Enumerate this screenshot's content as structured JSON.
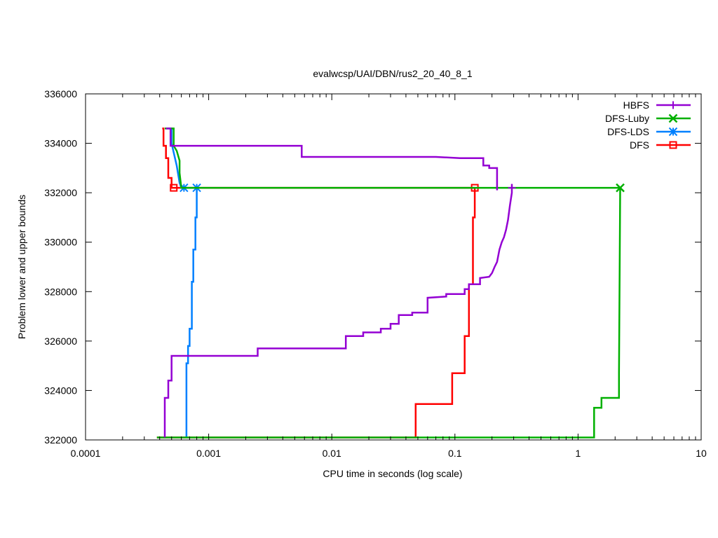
{
  "chart_data": {
    "type": "line",
    "title": "evalwcsp/UAI/DBN/rus2_20_40_8_1",
    "xlabel": "CPU time in seconds (log scale)",
    "ylabel": "Problem lower and upper bounds",
    "xscale": "log",
    "xlim": [
      0.0001,
      10
    ],
    "ylim": [
      322000,
      336000
    ],
    "xticks": [
      0.0001,
      0.001,
      0.01,
      0.1,
      1,
      10
    ],
    "xtick_labels": [
      "0.0001",
      "0.001",
      "0.01",
      "0.1",
      "1",
      "10"
    ],
    "yticks": [
      322000,
      324000,
      326000,
      328000,
      330000,
      332000,
      334000,
      336000
    ],
    "ytick_labels": [
      "322000",
      "324000",
      "326000",
      "328000",
      "330000",
      "332000",
      "334000",
      "336000"
    ],
    "grid": false,
    "legend_position": "top-right",
    "series": [
      {
        "name": "HBFS",
        "color": "#9400d3",
        "marker": "plus",
        "upper": [
          [
            0.00045,
            334600
          ],
          [
            0.00049,
            334600
          ],
          [
            0.00049,
            333900
          ],
          [
            0.0057,
            333900
          ],
          [
            0.0057,
            333450
          ],
          [
            0.07,
            333450
          ],
          [
            0.11,
            333400
          ],
          [
            0.17,
            333400
          ],
          [
            0.17,
            333100
          ],
          [
            0.19,
            333100
          ],
          [
            0.19,
            333000
          ],
          [
            0.22,
            333000
          ],
          [
            0.22,
            332100
          ]
        ],
        "lower": [
          [
            0.00044,
            322100
          ],
          [
            0.00044,
            323700
          ],
          [
            0.00047,
            323700
          ],
          [
            0.00047,
            324400
          ],
          [
            0.0005,
            324400
          ],
          [
            0.0005,
            325400
          ],
          [
            0.0025,
            325400
          ],
          [
            0.0025,
            325700
          ],
          [
            0.013,
            325700
          ],
          [
            0.013,
            326200
          ],
          [
            0.018,
            326200
          ],
          [
            0.018,
            326350
          ],
          [
            0.025,
            326350
          ],
          [
            0.025,
            326500
          ],
          [
            0.03,
            326500
          ],
          [
            0.03,
            326700
          ],
          [
            0.035,
            326700
          ],
          [
            0.035,
            327050
          ],
          [
            0.045,
            327050
          ],
          [
            0.045,
            327150
          ],
          [
            0.06,
            327150
          ],
          [
            0.06,
            327750
          ],
          [
            0.085,
            327800
          ],
          [
            0.085,
            327900
          ],
          [
            0.12,
            327900
          ],
          [
            0.12,
            328100
          ],
          [
            0.13,
            328100
          ],
          [
            0.13,
            328300
          ],
          [
            0.16,
            328300
          ],
          [
            0.16,
            328550
          ],
          [
            0.19,
            328600
          ],
          [
            0.2,
            328750
          ],
          [
            0.21,
            329000
          ],
          [
            0.22,
            329200
          ],
          [
            0.23,
            329700
          ],
          [
            0.24,
            330000
          ],
          [
            0.25,
            330200
          ],
          [
            0.26,
            330500
          ],
          [
            0.27,
            330900
          ],
          [
            0.28,
            331500
          ],
          [
            0.29,
            332000
          ],
          [
            0.29,
            332350
          ]
        ],
        "markers": [
          [
            0.29,
            332200
          ]
        ]
      },
      {
        "name": "DFS-Luby",
        "color": "#00b000",
        "marker": "cross",
        "upper": [
          [
            0.00044,
            334600
          ],
          [
            0.00052,
            334600
          ],
          [
            0.00052,
            333900
          ],
          [
            0.00055,
            333700
          ],
          [
            0.00058,
            333300
          ],
          [
            0.00058,
            332800
          ],
          [
            0.0006,
            332200
          ],
          [
            2.2,
            332200
          ]
        ],
        "lower": [
          [
            0.00038,
            322100
          ],
          [
            1.35,
            322100
          ],
          [
            1.35,
            323300
          ],
          [
            1.55,
            323300
          ],
          [
            1.55,
            323700
          ],
          [
            2.15,
            323700
          ],
          [
            2.15,
            324700
          ],
          [
            2.2,
            332200
          ]
        ],
        "markers": [
          [
            2.2,
            332200
          ]
        ]
      },
      {
        "name": "DFS-LDS",
        "color": "#0080ff",
        "marker": "star",
        "upper": [
          [
            0.00045,
            334600
          ],
          [
            0.0005,
            334600
          ],
          [
            0.0005,
            334000
          ],
          [
            0.00055,
            333100
          ],
          [
            0.00058,
            332400
          ],
          [
            0.0006,
            332200
          ],
          [
            0.0008,
            332200
          ]
        ],
        "lower": [
          [
            0.00066,
            322100
          ],
          [
            0.00066,
            325100
          ],
          [
            0.00068,
            325100
          ],
          [
            0.00068,
            325800
          ],
          [
            0.0007,
            325800
          ],
          [
            0.0007,
            326500
          ],
          [
            0.00073,
            326500
          ],
          [
            0.00073,
            328400
          ],
          [
            0.00075,
            328400
          ],
          [
            0.00075,
            329700
          ],
          [
            0.00078,
            329700
          ],
          [
            0.00078,
            331000
          ],
          [
            0.0008,
            331000
          ],
          [
            0.0008,
            332200
          ]
        ],
        "markers": [
          [
            0.00063,
            332200
          ],
          [
            0.0008,
            332200
          ]
        ]
      },
      {
        "name": "DFS",
        "color": "#ff0000",
        "marker": "square",
        "upper": [
          [
            0.00042,
            334600
          ],
          [
            0.00043,
            334600
          ],
          [
            0.00043,
            333900
          ],
          [
            0.00045,
            333900
          ],
          [
            0.00045,
            333400
          ],
          [
            0.00047,
            333400
          ],
          [
            0.00047,
            332600
          ],
          [
            0.0005,
            332600
          ],
          [
            0.0005,
            332200
          ],
          [
            0.145,
            332200
          ]
        ],
        "lower": [
          [
            0.00038,
            322100
          ],
          [
            0.048,
            322100
          ],
          [
            0.048,
            323450
          ],
          [
            0.095,
            323450
          ],
          [
            0.095,
            324700
          ],
          [
            0.12,
            324700
          ],
          [
            0.12,
            326200
          ],
          [
            0.13,
            326200
          ],
          [
            0.13,
            328300
          ],
          [
            0.14,
            328300
          ],
          [
            0.14,
            331000
          ],
          [
            0.145,
            331000
          ],
          [
            0.145,
            332200
          ]
        ],
        "markers": [
          [
            0.00052,
            332200
          ],
          [
            0.145,
            332200
          ]
        ]
      }
    ]
  }
}
